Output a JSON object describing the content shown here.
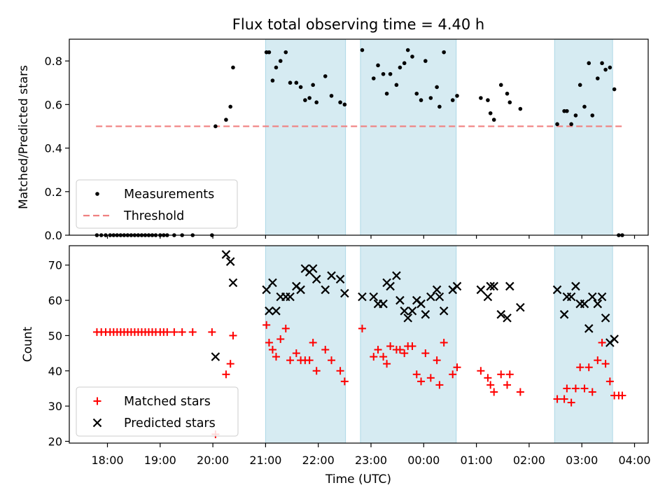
{
  "title": "Flux total observing time = 4.40 h",
  "chart_data": [
    {
      "type": "scatter",
      "name": "ratio-panel",
      "ylabel": "Matched/Predicted stars",
      "ylim": [
        0,
        0.9
      ],
      "yticks": [
        0.0,
        0.2,
        0.4,
        0.6,
        0.8
      ],
      "ytick_labels": [
        "0.0",
        "0.2",
        "0.4",
        "0.6",
        "0.8"
      ],
      "grid": false,
      "legend": "lower-left",
      "shaded_intervals": [
        [
          "21:00",
          "22:31"
        ],
        [
          "22:48",
          "00:37"
        ],
        [
          "02:29",
          "03:35"
        ]
      ],
      "series": [
        {
          "name": "Measurements",
          "marker": "dot",
          "color": "#000000",
          "points": [
            [
              "17:48",
              0.0
            ],
            [
              "17:53",
              0.0
            ],
            [
              "17:58",
              0.0
            ],
            [
              "18:03",
              0.0
            ],
            [
              "18:07",
              0.0
            ],
            [
              "18:11",
              0.0
            ],
            [
              "18:15",
              0.0
            ],
            [
              "18:19",
              0.0
            ],
            [
              "18:23",
              0.0
            ],
            [
              "18:27",
              0.0
            ],
            [
              "18:31",
              0.0
            ],
            [
              "18:35",
              0.0
            ],
            [
              "18:39",
              0.0
            ],
            [
              "18:43",
              0.0
            ],
            [
              "18:47",
              0.0
            ],
            [
              "18:51",
              0.0
            ],
            [
              "18:55",
              0.0
            ],
            [
              "19:00",
              0.0
            ],
            [
              "19:04",
              0.0
            ],
            [
              "19:08",
              0.0
            ],
            [
              "19:16",
              0.0
            ],
            [
              "19:25",
              0.0
            ],
            [
              "19:37",
              0.0
            ],
            [
              "19:59",
              0.0
            ],
            [
              "20:03",
              0.5
            ],
            [
              "20:15",
              0.53
            ],
            [
              "20:20",
              0.59
            ],
            [
              "20:23",
              0.77
            ],
            [
              "21:01",
              0.84
            ],
            [
              "21:04",
              0.84
            ],
            [
              "21:08",
              0.71
            ],
            [
              "21:12",
              0.77
            ],
            [
              "21:17",
              0.8
            ],
            [
              "21:23",
              0.84
            ],
            [
              "21:28",
              0.7
            ],
            [
              "21:35",
              0.7
            ],
            [
              "21:40",
              0.68
            ],
            [
              "21:45",
              0.62
            ],
            [
              "21:50",
              0.63
            ],
            [
              "21:54",
              0.69
            ],
            [
              "21:58",
              0.61
            ],
            [
              "22:08",
              0.73
            ],
            [
              "22:15",
              0.64
            ],
            [
              "22:25",
              0.61
            ],
            [
              "22:30",
              0.6
            ],
            [
              "22:50",
              0.85
            ],
            [
              "23:03",
              0.72
            ],
            [
              "23:08",
              0.78
            ],
            [
              "23:14",
              0.74
            ],
            [
              "23:18",
              0.65
            ],
            [
              "23:22",
              0.74
            ],
            [
              "23:29",
              0.69
            ],
            [
              "23:33",
              0.77
            ],
            [
              "23:38",
              0.79
            ],
            [
              "23:42",
              0.85
            ],
            [
              "23:47",
              0.82
            ],
            [
              "23:52",
              0.65
            ],
            [
              "23:57",
              0.62
            ],
            [
              "00:02",
              0.8
            ],
            [
              "00:08",
              0.63
            ],
            [
              "00:15",
              0.68
            ],
            [
              "00:18",
              0.59
            ],
            [
              "00:23",
              0.84
            ],
            [
              "00:33",
              0.62
            ],
            [
              "00:38",
              0.64
            ],
            [
              "01:05",
              0.63
            ],
            [
              "01:13",
              0.62
            ],
            [
              "01:16",
              0.56
            ],
            [
              "01:20",
              0.53
            ],
            [
              "01:28",
              0.69
            ],
            [
              "01:35",
              0.65
            ],
            [
              "01:38",
              0.61
            ],
            [
              "01:50",
              0.58
            ],
            [
              "02:32",
              0.51
            ],
            [
              "02:40",
              0.57
            ],
            [
              "02:43",
              0.57
            ],
            [
              "02:48",
              0.51
            ],
            [
              "02:53",
              0.55
            ],
            [
              "02:58",
              0.69
            ],
            [
              "03:03",
              0.59
            ],
            [
              "03:08",
              0.79
            ],
            [
              "03:12",
              0.55
            ],
            [
              "03:18",
              0.72
            ],
            [
              "03:23",
              0.79
            ],
            [
              "03:27",
              0.76
            ],
            [
              "03:32",
              0.77
            ],
            [
              "03:37",
              0.67
            ],
            [
              "03:42",
              0.0
            ],
            [
              "03:46",
              0.0
            ]
          ]
        },
        {
          "name": "Threshold",
          "line_style": "dashed",
          "color": "#f08080",
          "points": [
            [
              "17:47",
              0.5
            ],
            [
              "03:46",
              0.5
            ]
          ]
        }
      ]
    },
    {
      "type": "scatter",
      "name": "count-panel",
      "ylabel": "Count",
      "xlabel": "Time (UTC)",
      "ylim": [
        19.5,
        75.5
      ],
      "yticks": [
        20,
        30,
        40,
        50,
        60,
        70
      ],
      "ytick_labels": [
        "20",
        "30",
        "40",
        "50",
        "60",
        "70"
      ],
      "xticks": [
        "18:00",
        "19:00",
        "20:00",
        "21:00",
        "22:00",
        "23:00",
        "00:00",
        "01:00",
        "02:00",
        "03:00",
        "04:00"
      ],
      "grid": false,
      "legend": "lower-left",
      "series": [
        {
          "name": "Matched stars",
          "marker": "plus",
          "color": "#ff0000",
          "points": [
            [
              "17:48",
              51
            ],
            [
              "17:53",
              51
            ],
            [
              "17:58",
              51
            ],
            [
              "18:03",
              51
            ],
            [
              "18:07",
              51
            ],
            [
              "18:11",
              51
            ],
            [
              "18:15",
              51
            ],
            [
              "18:19",
              51
            ],
            [
              "18:23",
              51
            ],
            [
              "18:27",
              51
            ],
            [
              "18:31",
              51
            ],
            [
              "18:35",
              51
            ],
            [
              "18:39",
              51
            ],
            [
              "18:43",
              51
            ],
            [
              "18:47",
              51
            ],
            [
              "18:51",
              51
            ],
            [
              "18:55",
              51
            ],
            [
              "19:00",
              51
            ],
            [
              "19:04",
              51
            ],
            [
              "19:08",
              51
            ],
            [
              "19:16",
              51
            ],
            [
              "19:25",
              51
            ],
            [
              "19:37",
              51
            ],
            [
              "19:59",
              51
            ],
            [
              "20:03",
              22
            ],
            [
              "20:15",
              39
            ],
            [
              "20:20",
              42
            ],
            [
              "20:23",
              50
            ],
            [
              "21:01",
              53
            ],
            [
              "21:04",
              48
            ],
            [
              "21:08",
              46
            ],
            [
              "21:12",
              44
            ],
            [
              "21:17",
              49
            ],
            [
              "21:23",
              52
            ],
            [
              "21:28",
              43
            ],
            [
              "21:35",
              45
            ],
            [
              "21:40",
              43
            ],
            [
              "21:45",
              43
            ],
            [
              "21:50",
              43
            ],
            [
              "21:54",
              48
            ],
            [
              "21:58",
              40
            ],
            [
              "22:08",
              46
            ],
            [
              "22:15",
              43
            ],
            [
              "22:25",
              40
            ],
            [
              "22:30",
              37
            ],
            [
              "22:50",
              52
            ],
            [
              "23:03",
              44
            ],
            [
              "23:08",
              46
            ],
            [
              "23:14",
              44
            ],
            [
              "23:18",
              42
            ],
            [
              "23:22",
              47
            ],
            [
              "23:29",
              46
            ],
            [
              "23:33",
              46
            ],
            [
              "23:38",
              45
            ],
            [
              "23:42",
              47
            ],
            [
              "23:47",
              47
            ],
            [
              "23:52",
              39
            ],
            [
              "23:57",
              37
            ],
            [
              "00:02",
              45
            ],
            [
              "00:08",
              38
            ],
            [
              "00:15",
              43
            ],
            [
              "00:18",
              36
            ],
            [
              "00:23",
              48
            ],
            [
              "00:33",
              39
            ],
            [
              "00:38",
              41
            ],
            [
              "01:05",
              40
            ],
            [
              "01:13",
              38
            ],
            [
              "01:16",
              36
            ],
            [
              "01:20",
              34
            ],
            [
              "01:28",
              39
            ],
            [
              "01:35",
              36
            ],
            [
              "01:38",
              39
            ],
            [
              "01:50",
              34
            ],
            [
              "02:32",
              32
            ],
            [
              "02:40",
              32
            ],
            [
              "02:43",
              35
            ],
            [
              "02:48",
              31
            ],
            [
              "02:53",
              35
            ],
            [
              "02:58",
              41
            ],
            [
              "03:03",
              35
            ],
            [
              "03:08",
              41
            ],
            [
              "03:12",
              34
            ],
            [
              "03:18",
              43
            ],
            [
              "03:23",
              48
            ],
            [
              "03:27",
              42
            ],
            [
              "03:32",
              37
            ],
            [
              "03:37",
              33
            ],
            [
              "03:42",
              33
            ],
            [
              "03:46",
              33
            ]
          ]
        },
        {
          "name": "Predicted stars",
          "marker": "x",
          "color": "#000000",
          "points": [
            [
              "20:03",
              44
            ],
            [
              "20:15",
              73
            ],
            [
              "20:20",
              71
            ],
            [
              "20:23",
              65
            ],
            [
              "21:01",
              63
            ],
            [
              "21:04",
              57
            ],
            [
              "21:08",
              65
            ],
            [
              "21:12",
              57
            ],
            [
              "21:17",
              61
            ],
            [
              "21:23",
              61
            ],
            [
              "21:28",
              61
            ],
            [
              "21:35",
              64
            ],
            [
              "21:40",
              63
            ],
            [
              "21:45",
              69
            ],
            [
              "21:50",
              68
            ],
            [
              "21:54",
              69
            ],
            [
              "21:58",
              66
            ],
            [
              "22:08",
              63
            ],
            [
              "22:15",
              67
            ],
            [
              "22:25",
              66
            ],
            [
              "22:30",
              62
            ],
            [
              "22:50",
              61
            ],
            [
              "23:03",
              61
            ],
            [
              "23:08",
              59
            ],
            [
              "23:14",
              59
            ],
            [
              "23:18",
              65
            ],
            [
              "23:22",
              64
            ],
            [
              "23:29",
              67
            ],
            [
              "23:33",
              60
            ],
            [
              "23:38",
              57
            ],
            [
              "23:42",
              55
            ],
            [
              "23:47",
              57
            ],
            [
              "23:52",
              60
            ],
            [
              "23:57",
              59
            ],
            [
              "00:02",
              56
            ],
            [
              "00:08",
              61
            ],
            [
              "00:15",
              63
            ],
            [
              "00:18",
              61
            ],
            [
              "00:23",
              57
            ],
            [
              "00:33",
              63
            ],
            [
              "00:38",
              64
            ],
            [
              "01:05",
              63
            ],
            [
              "01:13",
              61
            ],
            [
              "01:16",
              64
            ],
            [
              "01:20",
              64
            ],
            [
              "01:28",
              56
            ],
            [
              "01:35",
              55
            ],
            [
              "01:38",
              64
            ],
            [
              "01:50",
              58
            ],
            [
              "02:32",
              63
            ],
            [
              "02:40",
              56
            ],
            [
              "02:43",
              61
            ],
            [
              "02:48",
              61
            ],
            [
              "02:53",
              64
            ],
            [
              "02:58",
              59
            ],
            [
              "03:03",
              59
            ],
            [
              "03:08",
              52
            ],
            [
              "03:12",
              61
            ],
            [
              "03:18",
              59
            ],
            [
              "03:23",
              61
            ],
            [
              "03:27",
              55
            ],
            [
              "03:32",
              48
            ],
            [
              "03:37",
              49
            ]
          ]
        }
      ]
    }
  ]
}
